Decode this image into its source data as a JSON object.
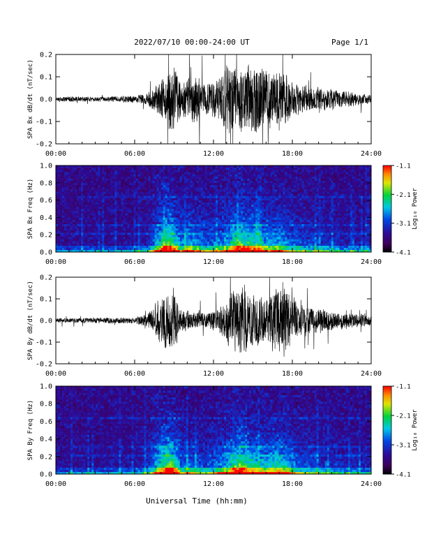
{
  "header": {
    "title": "2022/07/10  00:00-24:00 UT",
    "page": "Page 1/1"
  },
  "footer": {
    "xlabel": "Universal Time (hh:mm)"
  },
  "chart_data": [
    {
      "type": "line",
      "ylabel": "SPA Bx dB/dt (nT/sec)",
      "xlim": [
        "00:00",
        "24:00"
      ],
      "x_ticks": [
        "00:00",
        "06:00",
        "12:00",
        "18:00",
        "24:00"
      ],
      "ylim": [
        -0.2,
        0.2
      ],
      "y_ticks": [
        "-0.2",
        "-0.1",
        "0.0",
        "0.1",
        "0.2"
      ],
      "x_hours": [
        0,
        2,
        4,
        6,
        7,
        8.3,
        8.6,
        9,
        9.5,
        10,
        10.5,
        11,
        11.5,
        12,
        12.5,
        13,
        13.5,
        14,
        14.5,
        15,
        15.5,
        16,
        16.5,
        17,
        17.5,
        18,
        18.5,
        19,
        20,
        21,
        22,
        23,
        24
      ],
      "amplitude": [
        0.015,
        0.015,
        0.015,
        0.02,
        0.035,
        0.14,
        0.2,
        0.2,
        0.1,
        0.12,
        0.15,
        0.12,
        0.09,
        0.11,
        0.13,
        0.2,
        0.2,
        0.2,
        0.2,
        0.2,
        0.2,
        0.18,
        0.15,
        0.2,
        0.15,
        0.1,
        0.08,
        0.08,
        0.07,
        0.06,
        0.05,
        0.035,
        0.025
      ],
      "grid": false
    },
    {
      "type": "heatmap",
      "ylabel": "SPA Bx Freq (Hz)",
      "xlim": [
        "00:00",
        "24:00"
      ],
      "x_ticks": [
        "00:00",
        "06:00",
        "12:00",
        "18:00",
        "24:00"
      ],
      "ylim": [
        0.0,
        1.0
      ],
      "y_ticks": [
        "0.0",
        "0.2",
        "0.4",
        "0.6",
        "0.8",
        "1.0"
      ],
      "colorbar_label": "Log₁₀ Power",
      "colorbar_ticks": [
        "-1.1",
        "-2.1",
        "-3.1",
        "-4.1"
      ],
      "colorbar_range": [
        -4.1,
        -1.1
      ],
      "activity_hours": [
        0,
        2,
        4,
        6,
        7,
        8.3,
        8.6,
        9,
        9.5,
        10,
        10.5,
        11,
        11.5,
        12,
        12.5,
        13,
        13.5,
        14,
        14.5,
        15,
        15.5,
        16,
        16.5,
        17,
        17.5,
        18,
        18.5,
        19,
        20,
        21,
        22,
        23,
        24
      ],
      "activity_level": [
        0.05,
        0.05,
        0.05,
        0.08,
        0.15,
        0.85,
        0.95,
        0.8,
        0.45,
        0.55,
        0.5,
        0.45,
        0.35,
        0.4,
        0.45,
        0.55,
        0.75,
        0.9,
        0.8,
        0.75,
        0.6,
        0.55,
        0.5,
        0.55,
        0.45,
        0.35,
        0.3,
        0.28,
        0.25,
        0.2,
        0.15,
        0.12,
        0.1
      ],
      "horizontal_bands_hz": [
        0.2,
        0.32,
        0.64
      ]
    },
    {
      "type": "line",
      "ylabel": "SPA By dB/dt (nT/sec)",
      "xlim": [
        "00:00",
        "24:00"
      ],
      "x_ticks": [
        "00:00",
        "06:00",
        "12:00",
        "18:00",
        "24:00"
      ],
      "ylim": [
        -0.2,
        0.2
      ],
      "y_ticks": [
        "-0.2",
        "-0.1",
        "0.0",
        "0.1",
        "0.2"
      ],
      "x_hours": [
        0,
        2,
        4,
        6,
        7,
        8.3,
        8.6,
        9,
        9.5,
        10,
        10.5,
        11,
        11.5,
        12,
        12.5,
        13,
        13.5,
        14,
        14.5,
        15,
        15.5,
        16,
        16.5,
        17,
        17.5,
        18,
        18.5,
        19,
        20,
        21,
        22,
        23,
        24
      ],
      "amplitude": [
        0.015,
        0.015,
        0.018,
        0.02,
        0.04,
        0.16,
        0.2,
        0.2,
        0.07,
        0.06,
        0.05,
        0.05,
        0.05,
        0.06,
        0.08,
        0.12,
        0.2,
        0.2,
        0.2,
        0.15,
        0.15,
        0.12,
        0.2,
        0.2,
        0.2,
        0.15,
        0.1,
        0.08,
        0.08,
        0.06,
        0.05,
        0.04,
        0.03
      ],
      "grid": false
    },
    {
      "type": "heatmap",
      "ylabel": "SPA By Freq (Hz)",
      "xlim": [
        "00:00",
        "24:00"
      ],
      "x_ticks": [
        "00:00",
        "06:00",
        "12:00",
        "18:00",
        "24:00"
      ],
      "ylim": [
        0.0,
        1.0
      ],
      "y_ticks": [
        "0.0",
        "0.2",
        "0.4",
        "0.6",
        "0.8",
        "1.0"
      ],
      "colorbar_label": "Log₁₀ Power",
      "colorbar_ticks": [
        "-1.1",
        "-2.1",
        "-3.1",
        "-4.1"
      ],
      "colorbar_range": [
        -4.1,
        -1.1
      ],
      "activity_hours": [
        0,
        2,
        4,
        6,
        7,
        8.3,
        8.6,
        9,
        9.5,
        10,
        10.5,
        11,
        11.5,
        12,
        12.5,
        13,
        13.5,
        14,
        14.5,
        15,
        15.5,
        16,
        16.5,
        17,
        17.5,
        18,
        18.5,
        19,
        20,
        21,
        22,
        23,
        24
      ],
      "activity_level": [
        0.05,
        0.05,
        0.06,
        0.1,
        0.2,
        0.9,
        0.95,
        0.85,
        0.4,
        0.4,
        0.35,
        0.3,
        0.3,
        0.35,
        0.45,
        0.55,
        0.8,
        0.95,
        0.85,
        0.7,
        0.6,
        0.6,
        0.65,
        0.7,
        0.6,
        0.45,
        0.35,
        0.3,
        0.28,
        0.22,
        0.18,
        0.15,
        0.12
      ],
      "horizontal_bands_hz": [
        0.2,
        0.32,
        0.64
      ]
    }
  ]
}
